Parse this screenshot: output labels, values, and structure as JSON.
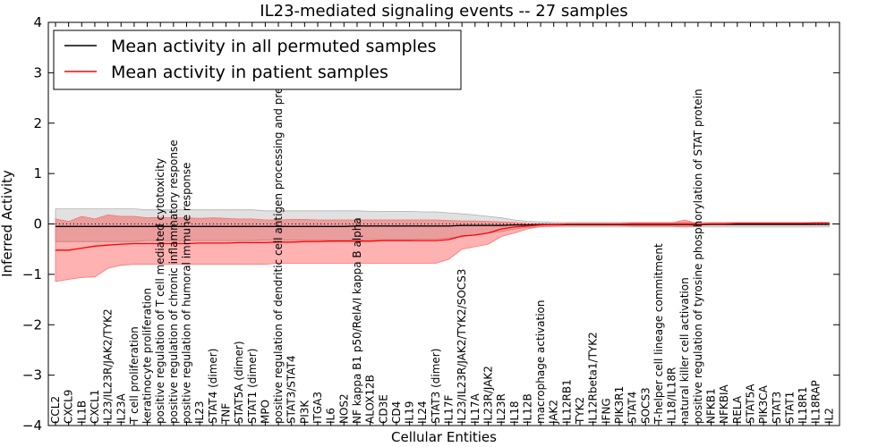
{
  "chart_data": {
    "type": "line",
    "title": "IL23-mediated signaling events -- 27 samples",
    "xlabel": "Cellular Entities",
    "ylabel": "Inferred Activity",
    "ylim": [
      -4,
      4
    ],
    "yticks": [
      -4,
      -3,
      -2,
      -1,
      0,
      1,
      2,
      3,
      4
    ],
    "legend_position": "top-left",
    "categories": [
      "CCL2",
      "CXCL9",
      "IL1B",
      "CXCL1",
      "IL23/IL23R/JAK2/TYK2",
      "IL23A",
      "T cell proliferation",
      "keratinocyte proliferation",
      "positive regulation of T cell mediated cytotoxicity",
      "positive regulation of chronic inflammatory response",
      "positive regulation of humoral immune response",
      "IL23",
      "STAT4 (dimer)",
      "TNF",
      "STAT5A (dimer)",
      "STAT1 (dimer)",
      "MPO",
      "positive regulation of dendritic cell antigen processing and presentation",
      "STAT3/STAT4",
      "PI3K",
      "ITGA3",
      "IL6",
      "NOS2",
      "NF kappa B1 p50/RelA/I kappa B alpha",
      "ALOX12B",
      "CD3E",
      "CD4",
      "IL19",
      "IL24",
      "STAT3 (dimer)",
      "IL17F",
      "IL23/IL23R/JAK2/TYK2/SOCS3",
      "IL17A",
      "IL23R/JAK2",
      "IL23R",
      "IL18",
      "IL12B",
      "macrophage activation",
      "JAK2",
      "IL12RB1",
      "TYK2",
      "IL12Rbeta1/TYK2",
      "IFNG",
      "PIK3R1",
      "STAT4",
      "SOCS3",
      "T-helper cell lineage commitment",
      "IL18/IL18R",
      "natural killer cell activation",
      "positive regulation of tyrosine phosphorylation of STAT protein",
      "NFKB1",
      "NFKBIA",
      "RELA",
      "STAT5A",
      "PIK3CA",
      "STAT3",
      "STAT1",
      "IL18R1",
      "IL18RAP",
      "IL2"
    ],
    "series": [
      {
        "name": "Mean activity in all permuted samples",
        "color": "#000000",
        "values": [
          -0.05,
          -0.05,
          -0.05,
          -0.05,
          -0.05,
          -0.05,
          -0.05,
          -0.05,
          -0.05,
          -0.05,
          -0.05,
          -0.05,
          -0.05,
          -0.05,
          -0.05,
          -0.05,
          -0.05,
          -0.05,
          -0.05,
          -0.05,
          -0.05,
          -0.05,
          -0.05,
          -0.04,
          -0.04,
          -0.04,
          -0.04,
          -0.04,
          -0.04,
          -0.04,
          -0.04,
          -0.03,
          -0.03,
          -0.03,
          -0.03,
          -0.02,
          -0.02,
          -0.01,
          -0.01,
          -0.01,
          -0.01,
          -0.01,
          -0.01,
          -0.01,
          -0.01,
          -0.01,
          -0.01,
          -0.01,
          -0.01,
          -0.01,
          -0.01,
          -0.01,
          -0.01,
          -0.01,
          -0.01,
          -0.01,
          -0.01,
          -0.01,
          -0.01,
          -0.01
        ],
        "band_upper": [
          0.3,
          0.3,
          0.3,
          0.3,
          0.3,
          0.3,
          0.3,
          0.28,
          0.28,
          0.28,
          0.28,
          0.28,
          0.28,
          0.28,
          0.28,
          0.28,
          0.26,
          0.26,
          0.26,
          0.26,
          0.26,
          0.26,
          0.26,
          0.26,
          0.25,
          0.25,
          0.25,
          0.25,
          0.24,
          0.24,
          0.22,
          0.2,
          0.18,
          0.15,
          0.12,
          0.08,
          0.05,
          0.04,
          0.03,
          0.03,
          0.03,
          0.03,
          0.03,
          0.03,
          0.03,
          0.03,
          0.03,
          0.03,
          0.03,
          0.03,
          0.03,
          0.03,
          0.03,
          0.03,
          0.03,
          0.03,
          0.03,
          0.03,
          0.03,
          0.03
        ],
        "band_lower": [
          -0.35,
          -0.35,
          -0.35,
          -0.35,
          -0.35,
          -0.35,
          -0.35,
          -0.33,
          -0.33,
          -0.33,
          -0.33,
          -0.33,
          -0.33,
          -0.33,
          -0.33,
          -0.33,
          -0.32,
          -0.32,
          -0.32,
          -0.32,
          -0.32,
          -0.32,
          -0.32,
          -0.32,
          -0.31,
          -0.31,
          -0.31,
          -0.31,
          -0.3,
          -0.3,
          -0.28,
          -0.25,
          -0.22,
          -0.18,
          -0.15,
          -0.1,
          -0.07,
          -0.06,
          -0.06,
          -0.06,
          -0.06,
          -0.06,
          -0.06,
          -0.06,
          -0.06,
          -0.06,
          -0.06,
          -0.06,
          -0.06,
          -0.06,
          -0.06,
          -0.06,
          -0.06,
          -0.06,
          -0.06,
          -0.06,
          -0.06,
          -0.06,
          -0.06,
          -0.06
        ]
      },
      {
        "name": "Mean activity in patient samples",
        "color": "#ff0000",
        "values": [
          -0.52,
          -0.52,
          -0.48,
          -0.44,
          -0.42,
          -0.4,
          -0.39,
          -0.39,
          -0.39,
          -0.39,
          -0.39,
          -0.38,
          -0.38,
          -0.38,
          -0.37,
          -0.37,
          -0.37,
          -0.36,
          -0.36,
          -0.35,
          -0.35,
          -0.34,
          -0.34,
          -0.34,
          -0.34,
          -0.33,
          -0.33,
          -0.33,
          -0.33,
          -0.33,
          -0.31,
          -0.24,
          -0.22,
          -0.18,
          -0.1,
          -0.06,
          -0.04,
          -0.02,
          -0.01,
          0.0,
          0.0,
          0.0,
          0.0,
          0.0,
          0.0,
          0.0,
          0.0,
          0.0,
          0.0,
          0.0,
          0.0,
          0.0,
          0.01,
          0.01,
          0.01,
          0.01,
          0.01,
          0.01,
          0.02,
          0.02
        ],
        "band_upper": [
          0.1,
          0.05,
          0.15,
          0.1,
          0.18,
          0.15,
          0.15,
          0.12,
          0.13,
          0.12,
          0.12,
          0.11,
          0.12,
          0.11,
          0.1,
          0.1,
          0.08,
          0.08,
          0.09,
          0.09,
          0.08,
          0.08,
          0.08,
          0.08,
          0.08,
          0.08,
          0.08,
          0.08,
          0.08,
          0.08,
          0.07,
          0.06,
          0.06,
          0.05,
          0.04,
          0.03,
          0.01,
          0.0,
          0.0,
          0.0,
          0.0,
          0.0,
          0.0,
          0.0,
          0.02,
          0.02,
          0.02,
          0.02,
          0.08,
          0.0,
          0.02,
          0.02,
          0.02,
          0.02,
          0.02,
          0.02,
          0.02,
          0.02,
          0.02,
          0.02
        ],
        "band_lower": [
          -1.14,
          -1.1,
          -1.06,
          -1.05,
          -0.88,
          -0.82,
          -0.8,
          -0.8,
          -0.8,
          -0.8,
          -0.8,
          -0.8,
          -0.8,
          -0.8,
          -0.8,
          -0.8,
          -0.8,
          -0.78,
          -0.78,
          -0.78,
          -0.78,
          -0.78,
          -0.78,
          -0.78,
          -0.78,
          -0.78,
          -0.78,
          -0.78,
          -0.78,
          -0.78,
          -0.7,
          -0.5,
          -0.45,
          -0.4,
          -0.25,
          -0.18,
          -0.1,
          -0.05,
          -0.04,
          -0.03,
          -0.03,
          -0.03,
          -0.03,
          -0.03,
          -0.04,
          -0.04,
          -0.04,
          -0.04,
          -0.06,
          -0.03,
          -0.01,
          -0.01,
          0.0,
          0.0,
          0.0,
          0.0,
          0.0,
          0.0,
          0.0,
          0.0
        ]
      }
    ]
  }
}
